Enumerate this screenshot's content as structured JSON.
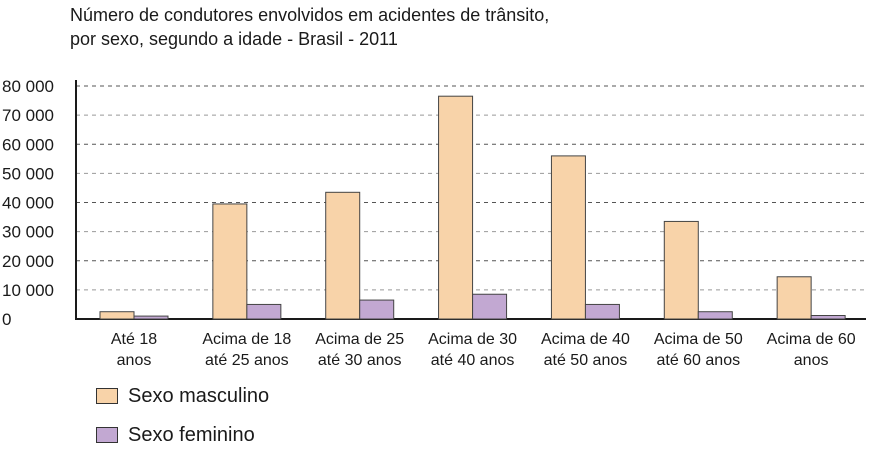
{
  "chart_data": {
    "type": "bar",
    "title_line1": "Número de condutores envolvidos em acidentes de trânsito,",
    "title_line2": "por sexo, segundo a idade - Brasil - 2011",
    "xlabel": "",
    "ylabel": "",
    "ylim": [
      0,
      80000
    ],
    "yticks": [
      {
        "value": 0,
        "label": "0"
      },
      {
        "value": 10000,
        "label": "10 000"
      },
      {
        "value": 20000,
        "label": "20 000"
      },
      {
        "value": 30000,
        "label": "30 000"
      },
      {
        "value": 40000,
        "label": "40 000"
      },
      {
        "value": 50000,
        "label": "50 000"
      },
      {
        "value": 60000,
        "label": "60 000"
      },
      {
        "value": 70000,
        "label": "70 000"
      },
      {
        "value": 80000,
        "label": "80 000"
      }
    ],
    "categories": [
      [
        "Até 18",
        "anos"
      ],
      [
        "Acima de 18",
        "até 25 anos"
      ],
      [
        "Acima de 25",
        "até 30 anos"
      ],
      [
        "Acima de 30",
        "até 40 anos"
      ],
      [
        "Acima de 40",
        "até 50 anos"
      ],
      [
        "Acima de 50",
        "até 60 anos"
      ],
      [
        "Acima de 60",
        "anos"
      ]
    ],
    "series": [
      {
        "name": "Sexo masculino",
        "color": "#f8d3a9",
        "values": [
          2500,
          39500,
          43500,
          76500,
          56000,
          33500,
          14500
        ]
      },
      {
        "name": "Sexo feminino",
        "color": "#c2a8d2",
        "values": [
          1000,
          5000,
          6500,
          8500,
          5000,
          2500,
          1200
        ]
      }
    ],
    "grid": "dashed horizontal",
    "legend_position": "bottom-left"
  }
}
